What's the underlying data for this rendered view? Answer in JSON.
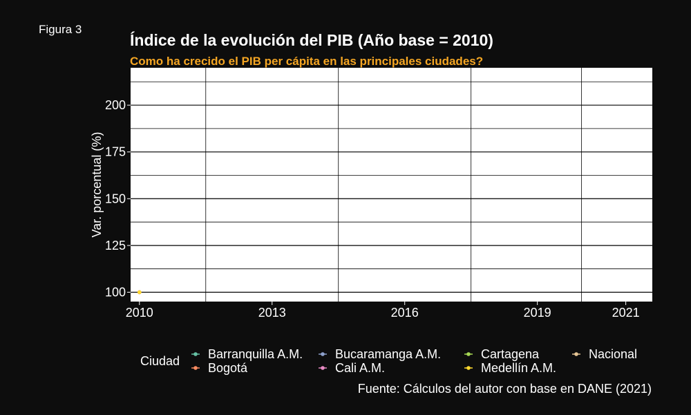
{
  "figure_label": "Figura 3",
  "caption": "Fuente: Cálculos del autor con base en DANE (2021)",
  "colors": {
    "background": "#0d0d0d",
    "panel": "#ffffff",
    "grid": "#000000",
    "title": "#ffffff",
    "subtitle": "#f5a623",
    "text": "#ffffff"
  },
  "chart_data": {
    "type": "line",
    "title": "Índice de la evolución del PIB (Año base = 2010)",
    "subtitle": "Como ha crecido el PIB per cápita en las principales ciudades?",
    "xlabel": "",
    "ylabel": "Var. porcentual (%)",
    "x_ticks": [
      2010,
      2013,
      2016,
      2019,
      2021
    ],
    "y_ticks": [
      100,
      125,
      150,
      175,
      200
    ],
    "xlim": [
      2009.8,
      2021.6
    ],
    "ylim": [
      95,
      220
    ],
    "grid": true,
    "legend_title": "Ciudad",
    "legend_position": "bottom",
    "series": [
      {
        "name": "Barranquilla A.M.",
        "color": "#66c2a5",
        "points": [
          [
            2010,
            100
          ]
        ]
      },
      {
        "name": "Bucaramanga A.M.",
        "color": "#8da0cb",
        "points": [
          [
            2010,
            100
          ]
        ]
      },
      {
        "name": "Cartagena",
        "color": "#a6d854",
        "points": [
          [
            2010,
            100
          ]
        ]
      },
      {
        "name": "Nacional",
        "color": "#e5c494",
        "points": [
          [
            2010,
            100
          ]
        ]
      },
      {
        "name": "Bogotá",
        "color": "#fc8d62",
        "points": [
          [
            2010,
            100
          ]
        ]
      },
      {
        "name": "Cali A.M.",
        "color": "#e78ac3",
        "points": [
          [
            2010,
            100
          ]
        ]
      },
      {
        "name": "Medellín A.M.",
        "color": "#ffd92f",
        "points": [
          [
            2010,
            100
          ]
        ]
      }
    ]
  }
}
